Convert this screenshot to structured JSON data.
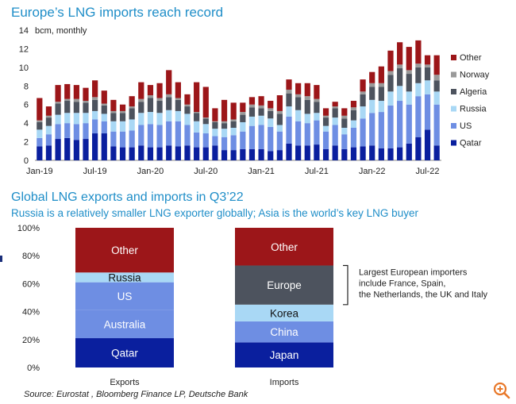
{
  "header": {
    "title": "Europe’s LNG imports reach record"
  },
  "section2": {
    "title": "Global LNG exports and imports in Q3’22",
    "subtitle": "Russia is a relatively smaller LNG exporter globally; Asia is the world’s key LNG buyer"
  },
  "source": "Source: Eurostat , Bloomberg Finance LP, Deutsche Bank",
  "colors": {
    "Qatar": "#0a1f9e",
    "US": "#6e8ee3",
    "Russia": "#a9d8f5",
    "Algeria": "#4d535e",
    "Norway": "#9a9a9a",
    "Other": "#9c1619",
    "Australia": "#6e8ee3",
    "Korea": "#a9d8f5",
    "China": "#6e8ee3",
    "Japan": "#0a1f9e",
    "Europe": "#4d535e"
  },
  "chart_data": [
    {
      "type": "bar",
      "stacked": true,
      "title": "Europe’s LNG imports reach record",
      "ylabel": "bcm, monthly",
      "ylim": [
        0,
        14
      ],
      "yticks": [
        "0",
        "2",
        "4",
        "6",
        "8",
        "10",
        "12",
        "14"
      ],
      "xticks": [
        "Jan-19",
        "Jul-19",
        "Jan-20",
        "Jul-20",
        "Jan-21",
        "Jul-21",
        "Jan-22",
        "Jul-22"
      ],
      "legend": [
        "Other",
        "Norway",
        "Algeria",
        "Russia",
        "US",
        "Qatar"
      ],
      "legend_position": "right",
      "categories": [
        "Jan-19",
        "Feb-19",
        "Mar-19",
        "Apr-19",
        "May-19",
        "Jun-19",
        "Jul-19",
        "Aug-19",
        "Sep-19",
        "Oct-19",
        "Nov-19",
        "Dec-19",
        "Jan-20",
        "Feb-20",
        "Mar-20",
        "Apr-20",
        "May-20",
        "Jun-20",
        "Jul-20",
        "Aug-20",
        "Sep-20",
        "Oct-20",
        "Nov-20",
        "Dec-20",
        "Jan-21",
        "Feb-21",
        "Mar-21",
        "Apr-21",
        "May-21",
        "Jun-21",
        "Jul-21",
        "Aug-21",
        "Sep-21",
        "Oct-21",
        "Nov-21",
        "Dec-21",
        "Jan-22",
        "Feb-22",
        "Mar-22",
        "Apr-22",
        "May-22",
        "Jun-22",
        "Jul-22",
        "Aug-22"
      ],
      "series": [
        {
          "name": "Qatar",
          "values": [
            1.5,
            1.6,
            2.3,
            2.4,
            2.2,
            2.3,
            2.9,
            2.9,
            1.5,
            1.4,
            1.4,
            1.6,
            1.4,
            1.4,
            1.6,
            1.5,
            1.6,
            1.4,
            1.4,
            1.6,
            1.1,
            1.1,
            1.2,
            1.2,
            1.2,
            1.0,
            1.1,
            1.8,
            1.6,
            1.6,
            1.7,
            1.2,
            1.6,
            1.2,
            1.4,
            1.5,
            1.6,
            1.3,
            1.3,
            1.4,
            1.8,
            2.5,
            3.3,
            1.6
          ]
        },
        {
          "name": "US",
          "values": [
            0.9,
            1.2,
            1.6,
            1.6,
            1.7,
            1.7,
            1.5,
            1.3,
            1.6,
            1.7,
            1.8,
            2.2,
            2.5,
            2.4,
            2.6,
            2.7,
            2.2,
            1.6,
            1.5,
            1.0,
            1.4,
            1.6,
            1.9,
            2.5,
            2.6,
            2.6,
            2.0,
            2.9,
            2.6,
            2.4,
            2.6,
            1.9,
            2.2,
            1.6,
            2.1,
            3.0,
            3.5,
            3.9,
            4.6,
            5.0,
            4.2,
            4.4,
            3.8,
            4.4
          ]
        },
        {
          "name": "Russia",
          "values": [
            0.9,
            0.9,
            1.0,
            1.1,
            1.2,
            1.1,
            0.9,
            0.8,
            1.1,
            1.1,
            1.2,
            1.3,
            1.3,
            1.3,
            1.2,
            1.1,
            1.2,
            1.2,
            1.0,
            0.8,
            0.9,
            0.8,
            1.0,
            1.0,
            1.0,
            0.9,
            0.7,
            1.1,
            1.2,
            1.0,
            0.8,
            0.6,
            0.8,
            0.7,
            0.8,
            1.3,
            1.4,
            1.2,
            1.5,
            1.6,
            1.4,
            1.4,
            1.5,
            1.4
          ]
        },
        {
          "name": "Algeria",
          "values": [
            0.8,
            0.9,
            1.2,
            1.3,
            1.2,
            1.1,
            1.2,
            0.9,
            0.9,
            0.9,
            1.2,
            1.2,
            1.5,
            1.3,
            1.4,
            1.2,
            0.8,
            0.9,
            0.6,
            0.7,
            0.6,
            0.7,
            0.8,
            1.0,
            0.8,
            0.8,
            1.2,
            1.4,
            1.4,
            1.5,
            1.2,
            0.9,
            1.0,
            1.0,
            1.1,
            1.3,
            1.4,
            1.5,
            1.8,
            1.9,
            1.9,
            1.7,
            1.4,
            1.2
          ]
        },
        {
          "name": "Norway",
          "values": [
            0.2,
            0.2,
            0.2,
            0.2,
            0.3,
            0.2,
            0.3,
            0.2,
            0.2,
            0.2,
            0.2,
            0.3,
            0.3,
            0.3,
            0.3,
            0.2,
            0.2,
            0.1,
            0.1,
            0.1,
            0.2,
            0.2,
            0.3,
            0.3,
            0.3,
            0.3,
            0.3,
            0.4,
            0.3,
            0.4,
            0.3,
            0.2,
            0.2,
            0.3,
            0.3,
            0.3,
            0.4,
            0.4,
            0.4,
            0.4,
            0.4,
            0.4,
            0.3,
            0.6
          ]
        },
        {
          "name": "Other",
          "values": [
            2.4,
            1.0,
            1.8,
            1.6,
            1.5,
            1.4,
            1.8,
            1.4,
            1.2,
            0.7,
            1.1,
            1.8,
            1.1,
            1.6,
            2.6,
            1.7,
            1.1,
            3.2,
            3.3,
            1.4,
            2.3,
            1.8,
            1.0,
            0.8,
            1.0,
            0.8,
            1.7,
            1.1,
            1.2,
            1.4,
            1.5,
            0.8,
            0.5,
            0.8,
            0.7,
            1.3,
            1.2,
            1.8,
            2.2,
            2.4,
            2.5,
            2.5,
            1.0,
            2.1
          ]
        }
      ]
    },
    {
      "type": "bar",
      "stacked": true,
      "percent": true,
      "title": "Global LNG exports and imports in Q3’22",
      "subtitle": "Russia is a relatively smaller LNG exporter globally; Asia is the world’s key LNG buyer",
      "ylim": [
        0,
        100
      ],
      "yticks": [
        "0%",
        "20%",
        "40%",
        "60%",
        "80%",
        "100%"
      ],
      "categories": [
        "Exports",
        "Imports"
      ],
      "stacks": [
        {
          "category": "Exports",
          "segments": [
            {
              "name": "Qatar",
              "value": 21
            },
            {
              "name": "Australia",
              "value": 20
            },
            {
              "name": "US",
              "value": 20
            },
            {
              "name": "Russia",
              "value": 7
            },
            {
              "name": "Other",
              "value": 32
            }
          ]
        },
        {
          "category": "Imports",
          "segments": [
            {
              "name": "Japan",
              "value": 18
            },
            {
              "name": "China",
              "value": 15
            },
            {
              "name": "Korea",
              "value": 12
            },
            {
              "name": "Europe",
              "value": 28
            },
            {
              "name": "Other",
              "value": 27
            }
          ]
        }
      ],
      "annotation": "Largest European importers include France, Spain, the Netherlands, the UK and Italy",
      "annotation_lines": [
        "Largest European importers",
        "include France, Spain,",
        "the Netherlands, the UK and Italy"
      ]
    }
  ]
}
